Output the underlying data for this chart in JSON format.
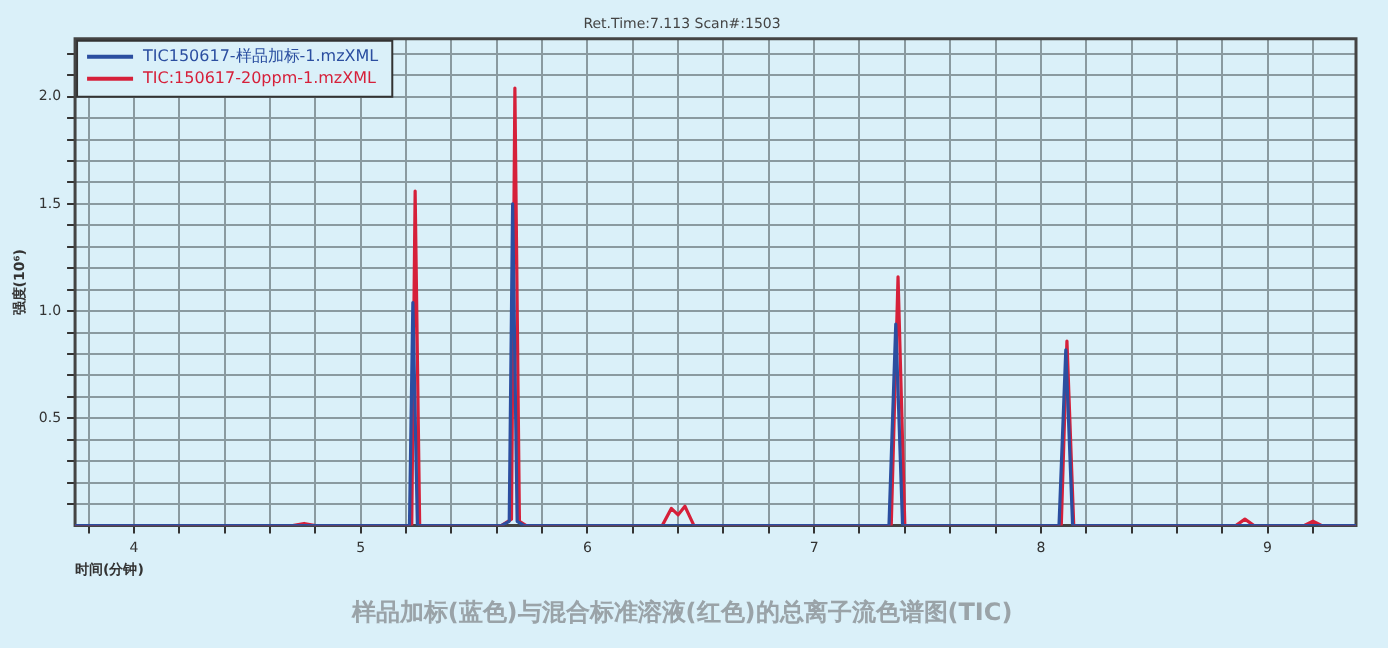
{
  "chart_data": {
    "type": "line",
    "title": "样品加标(蓝色)与混合标准溶液(红色)的总离子流色谱图(TIC)",
    "subtitle": "Ret.Time:7.113 Scan#:1503",
    "xlabel": "时间(分钟)",
    "ylabel": "强度(10⁶)",
    "xlim": [
      3.74,
      9.39
    ],
    "ylim": [
      0,
      2.27
    ],
    "xticks": [
      {
        "value": 3.8,
        "label": null
      },
      {
        "value": 4,
        "label": "4"
      },
      {
        "value": 4.2,
        "label": null
      },
      {
        "value": 4.4,
        "label": null
      },
      {
        "value": 4.6,
        "label": null
      },
      {
        "value": 4.8,
        "label": null
      },
      {
        "value": 5,
        "label": "5"
      },
      {
        "value": 5.2,
        "label": null
      },
      {
        "value": 5.4,
        "label": null
      },
      {
        "value": 5.6,
        "label": null
      },
      {
        "value": 5.8,
        "label": null
      },
      {
        "value": 6,
        "label": "6"
      },
      {
        "value": 6.2,
        "label": null
      },
      {
        "value": 6.4,
        "label": null
      },
      {
        "value": 6.6,
        "label": null
      },
      {
        "value": 6.8,
        "label": null
      },
      {
        "value": 7,
        "label": "7"
      },
      {
        "value": 7.2,
        "label": null
      },
      {
        "value": 7.4,
        "label": null
      },
      {
        "value": 7.6,
        "label": null
      },
      {
        "value": 7.8,
        "label": null
      },
      {
        "value": 8,
        "label": "8"
      },
      {
        "value": 8.2,
        "label": null
      },
      {
        "value": 8.4,
        "label": null
      },
      {
        "value": 8.6,
        "label": null
      },
      {
        "value": 8.8,
        "label": null
      },
      {
        "value": 9,
        "label": "9"
      },
      {
        "value": 9.2,
        "label": null
      }
    ],
    "yticks": [
      {
        "value": 0.1,
        "label": null
      },
      {
        "value": 0.2,
        "label": null
      },
      {
        "value": 0.3,
        "label": null
      },
      {
        "value": 0.4,
        "label": null
      },
      {
        "value": 0.5,
        "label": "0.5"
      },
      {
        "value": 0.6,
        "label": null
      },
      {
        "value": 0.7,
        "label": null
      },
      {
        "value": 0.8,
        "label": null
      },
      {
        "value": 0.9,
        "label": null
      },
      {
        "value": 1,
        "label": "1.0"
      },
      {
        "value": 1.1,
        "label": null
      },
      {
        "value": 1.2,
        "label": null
      },
      {
        "value": 1.3,
        "label": null
      },
      {
        "value": 1.4,
        "label": null
      },
      {
        "value": 1.5,
        "label": "1.5"
      },
      {
        "value": 1.6,
        "label": null
      },
      {
        "value": 1.7,
        "label": null
      },
      {
        "value": 1.8,
        "label": null
      },
      {
        "value": 1.9,
        "label": null
      },
      {
        "value": 2,
        "label": "2.0"
      },
      {
        "value": 2.1,
        "label": null
      },
      {
        "value": 2.2,
        "label": null
      }
    ],
    "grid": true,
    "legend": "top left",
    "marker": "none",
    "line_style": "solid",
    "series": [
      {
        "name": "TIC150617-样品加标-1.mzXML",
        "color": "#2b4ea0",
        "x": [
          3.74,
          5.18,
          5.215,
          5.23,
          5.25,
          5.62,
          5.655,
          5.67,
          5.69,
          5.72,
          7.33,
          7.36,
          7.39,
          8.08,
          8.11,
          8.14,
          9.39
        ],
        "values": [
          0,
          0,
          0,
          1.04,
          0,
          0,
          0.02,
          1.5,
          0.02,
          0,
          0,
          0.94,
          0,
          0,
          0.82,
          0,
          0
        ]
      },
      {
        "name": "TIC:150617-20ppm-1.mzXML",
        "color": "#d6203a",
        "x": [
          3.74,
          4.7,
          4.75,
          4.8,
          5.19,
          5.225,
          5.24,
          5.26,
          5.62,
          5.665,
          5.68,
          5.7,
          5.73,
          6.33,
          6.37,
          6.4,
          6.43,
          6.47,
          7.34,
          7.37,
          7.4,
          8.09,
          8.115,
          8.145,
          8.86,
          8.9,
          8.94,
          9.16,
          9.2,
          9.24,
          9.39
        ],
        "values": [
          0,
          0,
          0.01,
          0,
          0,
          0,
          1.56,
          0,
          0,
          0.03,
          2.04,
          0.02,
          0,
          0,
          0.08,
          0.05,
          0.09,
          0,
          0,
          1.16,
          0,
          0,
          0.86,
          0,
          0,
          0.03,
          0,
          0,
          0.02,
          0,
          0
        ]
      }
    ]
  }
}
